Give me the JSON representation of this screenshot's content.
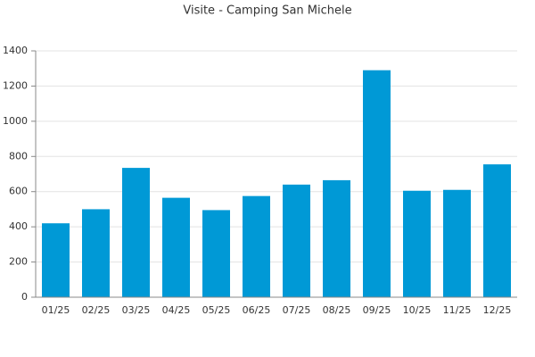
{
  "chart_data": {
    "type": "bar",
    "title": "Visite - Camping San Michele",
    "categories": [
      "01/25",
      "02/25",
      "03/25",
      "04/25",
      "05/25",
      "06/25",
      "07/25",
      "08/25",
      "09/25",
      "10/25",
      "11/25",
      "12/25"
    ],
    "values": [
      420,
      500,
      735,
      565,
      495,
      575,
      640,
      665,
      1290,
      605,
      610,
      755
    ],
    "color": "#0099d6",
    "ylim": [
      0,
      1400
    ],
    "yticks": [
      0,
      200,
      400,
      600,
      800,
      1000,
      1200,
      1400
    ],
    "grid": true
  }
}
